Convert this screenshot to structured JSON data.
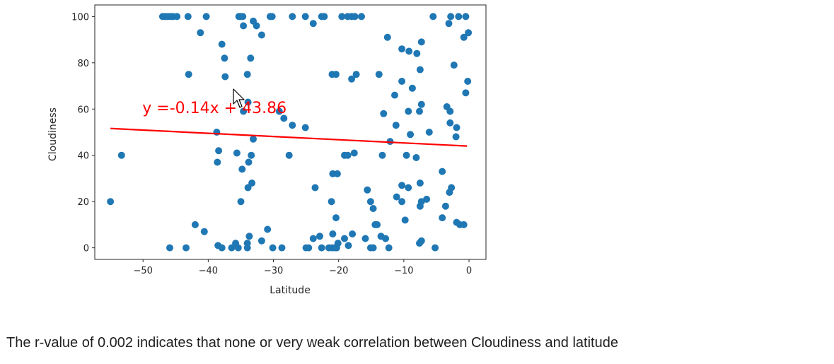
{
  "chart_data": {
    "type": "scatter",
    "title": "",
    "xlabel": "Latitude",
    "ylabel": "Cloudiness",
    "xlim": [
      -57.4,
      2.6
    ],
    "ylim": [
      -5,
      105
    ],
    "xticks": [
      -50,
      -40,
      -30,
      -20,
      -10,
      0
    ],
    "xtick_labels": [
      "−50",
      "−40",
      "−30",
      "−20",
      "−10",
      "0"
    ],
    "yticks": [
      0,
      20,
      40,
      60,
      80,
      100
    ],
    "ytick_labels": [
      "0",
      "20",
      "40",
      "60",
      "80",
      "100"
    ],
    "grid": false,
    "marker_color": "#1f77b4",
    "regression": {
      "equation": "y =-0.14x + 43.86",
      "color": "#ff0000",
      "x": [
        -55,
        -0.3
      ],
      "y": [
        51.6,
        44.0
      ]
    },
    "points": [
      [
        -55,
        20
      ],
      [
        -53.3,
        40
      ],
      [
        -47,
        100
      ],
      [
        -46.6,
        100
      ],
      [
        -46.2,
        100
      ],
      [
        -45.8,
        100
      ],
      [
        -45.4,
        100
      ],
      [
        -44.8,
        100
      ],
      [
        -43.1,
        100
      ],
      [
        -40.3,
        100
      ],
      [
        -35.3,
        100
      ],
      [
        -35,
        100
      ],
      [
        -34.7,
        100
      ],
      [
        -30.5,
        100
      ],
      [
        -30.2,
        100
      ],
      [
        -27.1,
        100
      ],
      [
        -25.1,
        100
      ],
      [
        -22.6,
        100
      ],
      [
        -22.2,
        100
      ],
      [
        -19.5,
        100
      ],
      [
        -18.6,
        100
      ],
      [
        -18,
        100
      ],
      [
        -17.5,
        100
      ],
      [
        -16.5,
        100
      ],
      [
        -5.5,
        100
      ],
      [
        -2.8,
        100
      ],
      [
        -1.6,
        100
      ],
      [
        -0.5,
        100
      ],
      [
        -33.1,
        98
      ],
      [
        -32.6,
        96
      ],
      [
        -34.6,
        96
      ],
      [
        -23.9,
        97
      ],
      [
        -41.2,
        93
      ],
      [
        -31.8,
        92
      ],
      [
        -12.5,
        91
      ],
      [
        -0.8,
        91
      ],
      [
        -0.1,
        93
      ],
      [
        -3.1,
        97
      ],
      [
        -37.9,
        88
      ],
      [
        -7.3,
        89
      ],
      [
        -10.3,
        86
      ],
      [
        -9.2,
        85
      ],
      [
        -8,
        84
      ],
      [
        -37.5,
        82
      ],
      [
        -33.5,
        82
      ],
      [
        -2.3,
        79
      ],
      [
        -7.5,
        77
      ],
      [
        -43,
        75
      ],
      [
        -34,
        75
      ],
      [
        -21,
        75
      ],
      [
        -20.4,
        75
      ],
      [
        -18,
        73
      ],
      [
        -17.3,
        75
      ],
      [
        -13.8,
        75
      ],
      [
        -37.4,
        74
      ],
      [
        -10.3,
        72
      ],
      [
        -0.2,
        72
      ],
      [
        -8.7,
        69
      ],
      [
        -11.4,
        66
      ],
      [
        -0.5,
        67
      ],
      [
        -33.9,
        63
      ],
      [
        -34.6,
        59
      ],
      [
        -29.1,
        59
      ],
      [
        -28.4,
        56
      ],
      [
        -13.1,
        58
      ],
      [
        -9.3,
        59
      ],
      [
        -7.3,
        62
      ],
      [
        -7.6,
        59
      ],
      [
        -3.4,
        61
      ],
      [
        -2.9,
        59
      ],
      [
        -27.1,
        53
      ],
      [
        -25.1,
        52
      ],
      [
        -11.2,
        53
      ],
      [
        -2.9,
        54
      ],
      [
        -1.9,
        52
      ],
      [
        -6.1,
        50
      ],
      [
        -9,
        49
      ],
      [
        -38.7,
        50
      ],
      [
        -2,
        48
      ],
      [
        -33.1,
        47
      ],
      [
        -12.1,
        46
      ],
      [
        -38.4,
        42
      ],
      [
        -35.6,
        41
      ],
      [
        -33.4,
        40
      ],
      [
        -27.6,
        40
      ],
      [
        -19.1,
        40
      ],
      [
        -18.6,
        40
      ],
      [
        -17.6,
        41
      ],
      [
        -13.3,
        40
      ],
      [
        -9.6,
        40
      ],
      [
        -8.1,
        39
      ],
      [
        -38.6,
        37
      ],
      [
        -33.8,
        37
      ],
      [
        -34.8,
        34
      ],
      [
        -20.9,
        32
      ],
      [
        -20.2,
        32
      ],
      [
        -4.1,
        33
      ],
      [
        -33.3,
        28
      ],
      [
        -33.9,
        26
      ],
      [
        -23.6,
        26
      ],
      [
        -15.6,
        25
      ],
      [
        -10.3,
        27
      ],
      [
        -9.3,
        26
      ],
      [
        -7.5,
        28
      ],
      [
        -2.7,
        26
      ],
      [
        -3,
        24
      ],
      [
        -11.1,
        22
      ],
      [
        -6.5,
        21
      ],
      [
        -7.3,
        20
      ],
      [
        -15.1,
        20
      ],
      [
        -10.3,
        20
      ],
      [
        -21.1,
        20
      ],
      [
        -35,
        20
      ],
      [
        -7.5,
        18
      ],
      [
        -3.6,
        18
      ],
      [
        -14.7,
        17
      ],
      [
        -20.4,
        13
      ],
      [
        -9.8,
        12
      ],
      [
        -4.1,
        13
      ],
      [
        -42,
        10
      ],
      [
        -40.6,
        7
      ],
      [
        -30.9,
        8
      ],
      [
        -1.9,
        11
      ],
      [
        -1.4,
        10
      ],
      [
        -0.8,
        10
      ],
      [
        -14.4,
        10
      ],
      [
        -14.1,
        10
      ],
      [
        -17.9,
        6
      ],
      [
        -20.9,
        6
      ],
      [
        -19.1,
        4
      ],
      [
        -13.5,
        5
      ],
      [
        -12.8,
        4
      ],
      [
        -22.9,
        5
      ],
      [
        -23.9,
        4
      ],
      [
        -33.7,
        5
      ],
      [
        -31.8,
        3
      ],
      [
        -15.9,
        4
      ],
      [
        -7.6,
        2
      ],
      [
        -7.3,
        3
      ],
      [
        -38.5,
        1
      ],
      [
        -35.8,
        2
      ],
      [
        -34,
        2
      ],
      [
        -20.1,
        2
      ],
      [
        -18.5,
        1
      ],
      [
        -45.9,
        0
      ],
      [
        -43.4,
        0
      ],
      [
        -37.9,
        0
      ],
      [
        -36.4,
        0
      ],
      [
        -35.4,
        0
      ],
      [
        -34,
        0
      ],
      [
        -30.1,
        0
      ],
      [
        -28.7,
        0
      ],
      [
        -25,
        0
      ],
      [
        -24.6,
        0
      ],
      [
        -22.6,
        0
      ],
      [
        -21.5,
        0
      ],
      [
        -21,
        0
      ],
      [
        -20.6,
        0
      ],
      [
        -20.3,
        0
      ],
      [
        -15.1,
        0
      ],
      [
        -14.7,
        0
      ],
      [
        -12.3,
        0
      ],
      [
        -5.2,
        0
      ]
    ]
  },
  "caption": "The r-value of 0.002 indicates that none or very weak correlation between Cloudiness and latitude"
}
